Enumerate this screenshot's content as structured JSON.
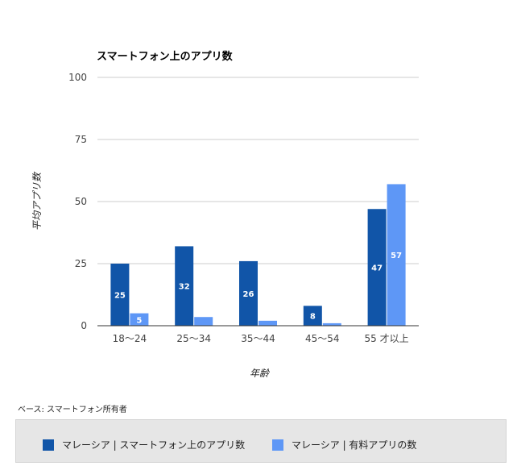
{
  "chart_data": {
    "type": "bar",
    "title": "スマートフォン上のアプリ数",
    "xlabel": "年齢",
    "ylabel": "平均アプリ数",
    "categories": [
      "18～24",
      "25～34",
      "35～44",
      "45～54",
      "55 才以上"
    ],
    "ylim": [
      0,
      100
    ],
    "yticks": [
      0,
      25,
      50,
      75,
      100
    ],
    "grid": true,
    "legend_position": "bottom",
    "series": [
      {
        "name": "マレーシア | スマートフォン上のアプリ数",
        "color": "#1155a8",
        "values": [
          25,
          32,
          26,
          8,
          47
        ],
        "labels": [
          "25",
          "32",
          "26",
          "8",
          "47"
        ]
      },
      {
        "name": "マレーシア | 有料アプリの数",
        "color": "#5e97f6",
        "values": [
          5,
          3.5,
          2,
          1,
          57
        ],
        "labels": [
          "5",
          "",
          "",
          "",
          "57"
        ]
      }
    ]
  },
  "footnote": "ベース: スマートフォン所有者"
}
